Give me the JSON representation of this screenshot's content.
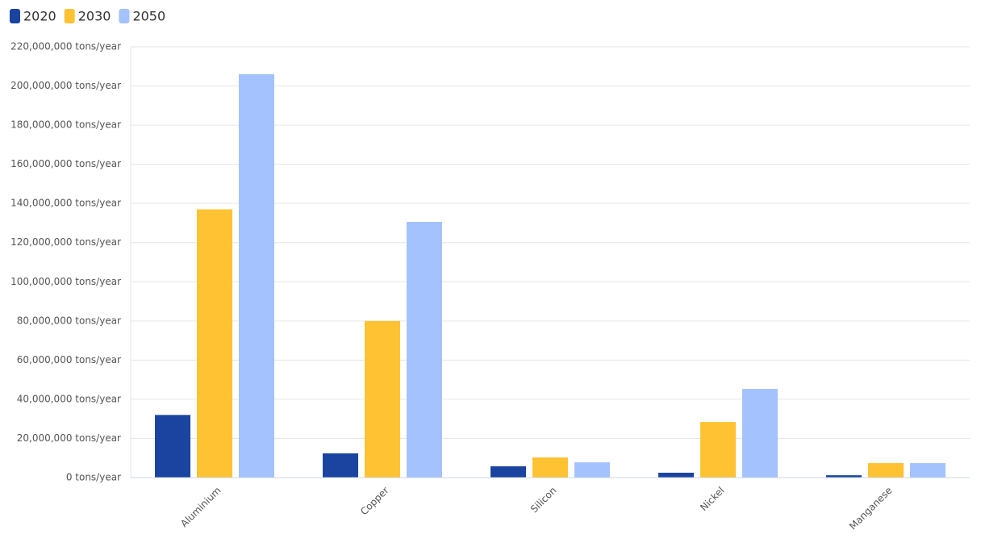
{
  "chart_data": {
    "type": "bar",
    "categories": [
      "Aluminium",
      "Copper",
      "Silicon",
      "Nickel",
      "Manganese"
    ],
    "series": [
      {
        "name": "2020",
        "color": "#1a44a0",
        "values": [
          32000000,
          12400000,
          5800000,
          2500000,
          1200000
        ]
      },
      {
        "name": "2030",
        "color": "#ffc232",
        "values": [
          137000000,
          80000000,
          10300000,
          28400000,
          7400000
        ]
      },
      {
        "name": "2050",
        "color": "#a4c2fd",
        "values": [
          206000000,
          130600000,
          7800000,
          45300000,
          7400000
        ]
      }
    ],
    "ylim": [
      0,
      220000000
    ],
    "yticks": [
      {
        "value": 0,
        "label": "0 tons/year"
      },
      {
        "value": 20000000,
        "label": "20,000,000 tons/year"
      },
      {
        "value": 40000000,
        "label": "40,000,000 tons/year"
      },
      {
        "value": 60000000,
        "label": "60,000,000 tons/year"
      },
      {
        "value": 80000000,
        "label": "80,000,000 tons/year"
      },
      {
        "value": 100000000,
        "label": "100,000,000 tons/year"
      },
      {
        "value": 120000000,
        "label": "120,000,000 tons/year"
      },
      {
        "value": 140000000,
        "label": "140,000,000 tons/year"
      },
      {
        "value": 160000000,
        "label": "160,000,000 tons/year"
      },
      {
        "value": 180000000,
        "label": "180,000,000 tons/year"
      },
      {
        "value": 200000000,
        "label": "200,000,000 tons/year"
      },
      {
        "value": 220000000,
        "label": "220,000,000 tons/year"
      }
    ],
    "grid": true,
    "legend": "top-left"
  }
}
